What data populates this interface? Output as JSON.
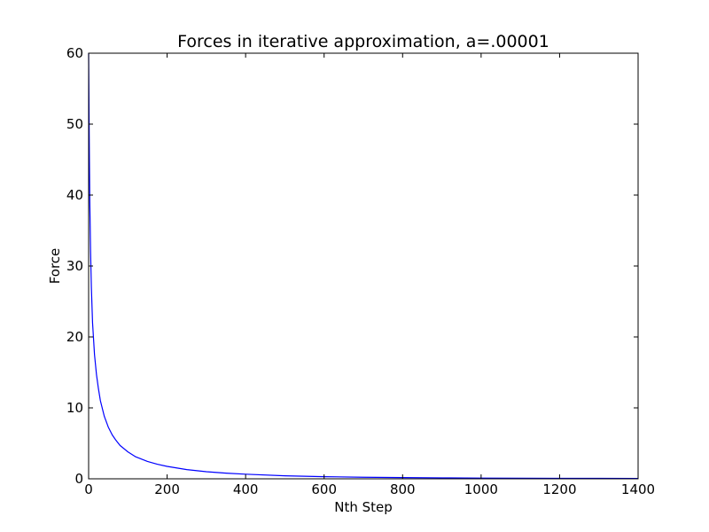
{
  "chart_data": {
    "type": "line",
    "title": "Forces in iterative approximation, a=.00001",
    "xlabel": "Nth Step",
    "ylabel": "Force",
    "xlim": [
      0,
      1400
    ],
    "ylim": [
      0,
      60
    ],
    "xticks": [
      0,
      200,
      400,
      600,
      800,
      1000,
      1200,
      1400
    ],
    "yticks": [
      0,
      10,
      20,
      30,
      40,
      50,
      60
    ],
    "grid": false,
    "legend": "none",
    "series_color": "#0000ff",
    "series": [
      {
        "x": [
          0,
          1,
          2,
          3,
          5,
          7,
          10,
          15,
          20,
          25,
          30,
          40,
          50,
          60,
          70,
          80,
          100,
          120,
          150,
          175,
          200,
          250,
          300,
          350,
          400,
          500,
          600,
          700,
          800,
          900,
          1000,
          1100,
          1200,
          1300,
          1400
        ],
        "y": [
          60,
          52,
          45,
          39,
          32,
          27,
          22,
          17.5,
          14.7,
          12.7,
          11.0,
          8.8,
          7.3,
          6.2,
          5.4,
          4.7,
          3.8,
          3.1,
          2.45,
          2.05,
          1.75,
          1.3,
          1.0,
          0.8,
          0.65,
          0.42,
          0.3,
          0.22,
          0.17,
          0.13,
          0.1,
          0.08,
          0.07,
          0.06,
          0.05
        ]
      }
    ]
  }
}
